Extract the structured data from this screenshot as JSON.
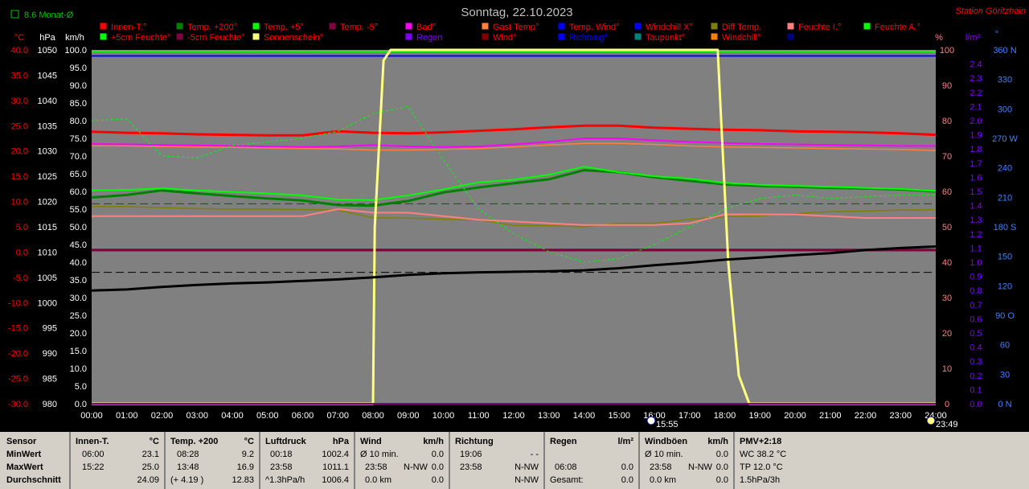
{
  "header": {
    "title": "Sonntag, 22.10.2023",
    "station": "Station Göritzhain",
    "monat": "8.6 Monat-Ø"
  },
  "colors": {
    "plot_bg": "#808080",
    "innen": "#ff0000",
    "temp200": "#008000",
    "temp5": "#00ff00",
    "tempm5": "#800040",
    "bad": "#ff00ff",
    "gast": "#ff8040",
    "tempwind": "#0000ff",
    "windchillx": "#0000ff",
    "diff": "#808000",
    "feuchte_i": "#ff8080",
    "feuchte_a": "#00ff00",
    "feuchte5": "#00ff00",
    "feuchtem5": "#800040",
    "sonne": "#ffff80",
    "luftdruck": "#000000",
    "regen": "#8000ff",
    "wind": "#800000",
    "richtung": "#0000ff",
    "taupunkt": "#008080",
    "windchill": "#ff8000",
    "windboeen": "#000080"
  },
  "axes": {
    "celsius_unit": "°C",
    "hpa_unit": "hPa",
    "kmh_unit": "km/h",
    "pct_unit": "%",
    "lm2_unit": "l/m²",
    "deg_unit": "°",
    "celsius": [
      "40.0",
      "35.0",
      "30.0",
      "25.0",
      "20.0",
      "15.0",
      "10.0",
      "5.0",
      "0.0",
      "-5.0",
      "-10.0",
      "-15.0",
      "-20.0",
      "-25.0",
      "-30.0"
    ],
    "hpa": [
      "1050",
      "1045",
      "1040",
      "1035",
      "1030",
      "1025",
      "1020",
      "1015",
      "1010",
      "1005",
      "1000",
      "995",
      "990",
      "985",
      "980"
    ],
    "kmh": [
      "100.0",
      "95.0",
      "90.0",
      "85.0",
      "80.0",
      "75.0",
      "70.0",
      "65.0",
      "60.0",
      "55.0",
      "50.0",
      "45.0",
      "40.0",
      "35.0",
      "30.0",
      "25.0",
      "20.0",
      "15.0",
      "10.0",
      "5.0",
      "0.0"
    ],
    "pct": [
      "100",
      "90",
      "80",
      "70",
      "60",
      "50",
      "40",
      "30",
      "20",
      "10",
      "0"
    ],
    "lm2": [
      "2.4",
      "2.3",
      "2.2",
      "2.1",
      "2.0",
      "1.9",
      "1.8",
      "1.7",
      "1.6",
      "1.5",
      "1.4",
      "1.3",
      "1.2",
      "1.1",
      "1.0",
      "0.9",
      "0.8",
      "0.7",
      "0.6",
      "0.5",
      "0.4",
      "0.3",
      "0.2",
      "0.1",
      "0.0"
    ],
    "deg": [
      "360 N",
      "330",
      "300",
      "270 W",
      "240",
      "210",
      "180 S",
      "150",
      "120",
      "90 O",
      "60",
      "30",
      "0 N"
    ],
    "time": [
      "00:00",
      "01:00",
      "02:00",
      "03:00",
      "04:00",
      "05:00",
      "06:00",
      "07:00",
      "08:00",
      "09:00",
      "10:00",
      "11:00",
      "12:00",
      "13:00",
      "14:00",
      "15:00",
      "16:00",
      "17:00",
      "18:00",
      "19:00",
      "20:00",
      "21:00",
      "22:00",
      "23:00",
      "24:00"
    ],
    "sunrise_label": "15:55",
    "sunset_label": "23:49"
  },
  "legend": [
    [
      "Innen-T.°",
      "Temp. +200°",
      "Temp. +5°",
      "Temp. -5°",
      "Bad°",
      "Gast Temp°",
      "Temp. Wind°",
      "Windchill X°",
      "Diff Temp.",
      "Feuchte I.°",
      "Feuchte A.°"
    ],
    [
      "+5cm Feuchte°",
      "-5cm Feuchte°",
      "Sonnenschein°",
      "Luftdruck°",
      "Regen",
      "Wind°",
      "Richtung°",
      "Taupunkt°",
      "Windchill°",
      "Windböen°"
    ]
  ],
  "chart_data": {
    "type": "line",
    "title": "Sonntag, 22.10.2023",
    "x_unit": "hour",
    "xlim": [
      0,
      24
    ],
    "y_axes": {
      "celsius": {
        "unit": "°C",
        "range": [
          -30,
          40
        ]
      },
      "pressure": {
        "unit": "hPa",
        "range": [
          980,
          1050
        ]
      },
      "speed": {
        "unit": "km/h",
        "range": [
          0,
          100
        ]
      },
      "percent": {
        "unit": "%",
        "range": [
          0,
          100
        ]
      },
      "rain": {
        "unit": "l/m²",
        "range": [
          0,
          2.5
        ]
      },
      "direction": {
        "unit": "°",
        "range": [
          0,
          360
        ]
      }
    },
    "x": [
      0,
      1,
      2,
      3,
      4,
      5,
      6,
      7,
      8,
      9,
      10,
      11,
      12,
      13,
      14,
      15,
      16,
      17,
      18,
      19,
      20,
      21,
      22,
      23,
      24
    ],
    "series": [
      {
        "name": "Innen-T.°",
        "axis": "celsius",
        "values": [
          23.8,
          23.6,
          23.5,
          23.3,
          23.2,
          23.1,
          23.1,
          23.9,
          23.6,
          23.5,
          23.7,
          24.0,
          24.3,
          24.7,
          25.0,
          25.0,
          24.6,
          24.4,
          24.2,
          24.1,
          23.9,
          23.8,
          23.7,
          23.5,
          23.2
        ]
      },
      {
        "name": "Temp. +200°",
        "axis": "celsius",
        "values": [
          10.8,
          11.3,
          12.2,
          11.6,
          11.1,
          10.6,
          10.2,
          9.3,
          9.2,
          10.1,
          11.8,
          12.8,
          13.6,
          14.4,
          16.2,
          15.8,
          14.8,
          14.1,
          13.4,
          13.1,
          12.9,
          12.7,
          12.6,
          12.4,
          12.0
        ]
      },
      {
        "name": "Temp. +5°",
        "axis": "celsius",
        "values": [
          12.2,
          12.3,
          12.6,
          12.2,
          11.9,
          11.6,
          11.2,
          10.4,
          10.3,
          11.2,
          12.4,
          13.8,
          14.3,
          15.3,
          16.9,
          15.8,
          15.0,
          14.5,
          13.7,
          13.3,
          13.1,
          12.9,
          12.7,
          12.5,
          12.1
        ]
      },
      {
        "name": "Temp. -5°",
        "axis": "celsius",
        "values": [
          0.3,
          0.3,
          0.3,
          0.3,
          0.3,
          0.3,
          0.3,
          0.3,
          0.3,
          0.3,
          0.3,
          0.3,
          0.3,
          0.3,
          0.3,
          0.3,
          0.3,
          0.3,
          0.3,
          0.3,
          0.3,
          0.3,
          0.3,
          0.3,
          0.3
        ]
      },
      {
        "name": "Bad°",
        "axis": "celsius",
        "values": [
          21.4,
          21.3,
          21.2,
          21.1,
          21.0,
          20.9,
          20.8,
          20.9,
          21.2,
          20.9,
          20.8,
          20.9,
          21.3,
          21.8,
          22.5,
          22.5,
          22.1,
          21.8,
          21.6,
          21.4,
          21.3,
          21.2,
          21.1,
          21.0,
          21.0
        ]
      },
      {
        "name": "Gast Temp°",
        "axis": "celsius",
        "values": [
          21.0,
          21.0,
          20.9,
          20.8,
          20.7,
          20.6,
          20.5,
          20.4,
          20.2,
          20.2,
          20.3,
          20.5,
          20.8,
          21.2,
          21.5,
          21.5,
          21.3,
          21.0,
          20.8,
          20.7,
          20.6,
          20.5,
          20.4,
          20.3,
          20.1
        ]
      },
      {
        "name": "Windchill X°",
        "axis": "celsius",
        "values": [
          38.8,
          38.8,
          38.8,
          38.8,
          38.8,
          38.8,
          38.8,
          38.8,
          38.8,
          38.8,
          38.8,
          38.8,
          38.8,
          38.8,
          38.8,
          38.8,
          38.8,
          38.8,
          38.8,
          38.8,
          38.8,
          38.8,
          38.8,
          38.8,
          38.8
        ]
      },
      {
        "name": "Diff Temp.",
        "axis": "celsius",
        "values": [
          9.0,
          9.0,
          8.8,
          8.6,
          8.5,
          8.5,
          8.4,
          8.3,
          6.8,
          6.7,
          6.5,
          6.4,
          5.3,
          5.2,
          5.0,
          5.7,
          5.7,
          6.5,
          7.0,
          7.2,
          7.6,
          8.0,
          8.1,
          8.3,
          8.4
        ]
      },
      {
        "name": "Feuchte A.°",
        "axis": "percent",
        "values": [
          80.0,
          80.5,
          70.0,
          69.5,
          73.0,
          74.0,
          75.0,
          77.0,
          82.0,
          84.0,
          69.0,
          55.0,
          48.0,
          43.0,
          40.0,
          41.0,
          45.0,
          50.0,
          55.0,
          58.0,
          59.0,
          58.0,
          58.5,
          59.0,
          59.0
        ]
      },
      {
        "name": "Feuchte I.°",
        "axis": "percent",
        "values": [
          53.0,
          53.0,
          53.0,
          53.0,
          53.0,
          53.0,
          53.0,
          55.0,
          54.0,
          54.0,
          53.0,
          52.0,
          51.5,
          51.0,
          50.5,
          50.5,
          50.5,
          51.0,
          53.5,
          53.5,
          53.5,
          53.0,
          52.5,
          52.5,
          52.5
        ]
      },
      {
        "name": "Sonnenschein°",
        "axis": "percent",
        "values": [
          0,
          0,
          0,
          0,
          0,
          0,
          0,
          0,
          0,
          100,
          100,
          100,
          100,
          100,
          100,
          100,
          100,
          100,
          100,
          0,
          0,
          0,
          0,
          0,
          0
        ]
      },
      {
        "name": "Luftdruck°",
        "axis": "pressure",
        "values": [
          1002.4,
          1002.6,
          1003.1,
          1003.5,
          1003.8,
          1004.0,
          1004.3,
          1004.6,
          1005.0,
          1005.5,
          1005.8,
          1006.0,
          1006.1,
          1006.2,
          1006.4,
          1006.8,
          1007.4,
          1007.9,
          1008.5,
          1008.9,
          1009.4,
          1009.8,
          1010.4,
          1010.8,
          1011.1
        ]
      },
      {
        "name": "Regen",
        "axis": "rain",
        "values": [
          0,
          0,
          0,
          0,
          0,
          0,
          0,
          0,
          0,
          0,
          0,
          0,
          0,
          0,
          0,
          0,
          0,
          0,
          0,
          0,
          0,
          0,
          0,
          0,
          0
        ]
      },
      {
        "name": "Wind°",
        "axis": "speed",
        "values": [
          0,
          0,
          0,
          0,
          0,
          0,
          0,
          0,
          0,
          0,
          0,
          0,
          0,
          0,
          0,
          0,
          0,
          0,
          0,
          0,
          0,
          0,
          0,
          0,
          0
        ]
      }
    ],
    "reference_lines": [
      {
        "axis": "speed",
        "value": 56.5,
        "style": "dashed",
        "color": "#006000"
      },
      {
        "axis": "pressure",
        "value": 1006.0,
        "style": "dashed",
        "color": "#000000"
      },
      {
        "axis": "celsius",
        "value": 0.5,
        "style": "solid",
        "color": "#800040"
      },
      {
        "axis": "celsius",
        "value": 38.8,
        "style": "solid",
        "color": "#0000ff"
      },
      {
        "axis": "celsius",
        "value": 39.7,
        "style": "solid",
        "color": "#00ff00"
      }
    ]
  },
  "stats": {
    "rows": [
      "Sensor",
      "MinWert",
      "MaxWert",
      "Durchschnitt"
    ],
    "innen": {
      "title": "Innen-T.",
      "unit": "°C",
      "min_t": "06:00",
      "min_v": "23.1",
      "max_t": "15:22",
      "max_v": "25.0",
      "avg": "24.09"
    },
    "temp200": {
      "title": "Temp. +200",
      "unit": "°C",
      "min_t": "08:28",
      "min_v": "9.2",
      "max_t": "13:48",
      "max_v": "16.9",
      "avg_note": "(+ 4.19 )",
      "avg": "12.83"
    },
    "luft": {
      "title": "Luftdruck",
      "unit": "hPa",
      "min_t": "00:18",
      "min_v": "1002.4",
      "max_t": "23:58",
      "max_v": "1011.1",
      "avg_note": "^1.3hPa/h",
      "avg": "1006.4"
    },
    "wind": {
      "title": "Wind",
      "unit": "km/h",
      "r1_l": "Ø 10 min.",
      "r1_v": "0.0",
      "r2_t": "23:58",
      "r2_d": "N-NW",
      "r2_v": "0.0",
      "r3_l": "0.0 km",
      "r3_v": "0.0"
    },
    "richtung": {
      "title": "Richtung",
      "r1_t": "19:06",
      "r1_d": "- -",
      "r2_t": "23:58",
      "r2_d": "N-NW",
      "r3_d": "N-NW"
    },
    "regen": {
      "title": "Regen",
      "unit": "l/m²",
      "r2_t": "06:08",
      "r2_v": "0.0",
      "r3_l": "Gesamt:",
      "r3_v": "0.0"
    },
    "boeen": {
      "title": "Windböen",
      "unit": "km/h",
      "r1_l": "Ø 10 min.",
      "r1_v": "0.0",
      "r2_t": "23:58",
      "r2_d": "N-NW",
      "r2_v": "0.0",
      "r3_l": "0.0 km",
      "r3_v": "0.0"
    },
    "pmv": {
      "title": "PMV+2:18",
      "r1": "WC 38.2 °C",
      "r2": "TP 12.0 °C",
      "r3": "1.5hPa/3h"
    }
  }
}
